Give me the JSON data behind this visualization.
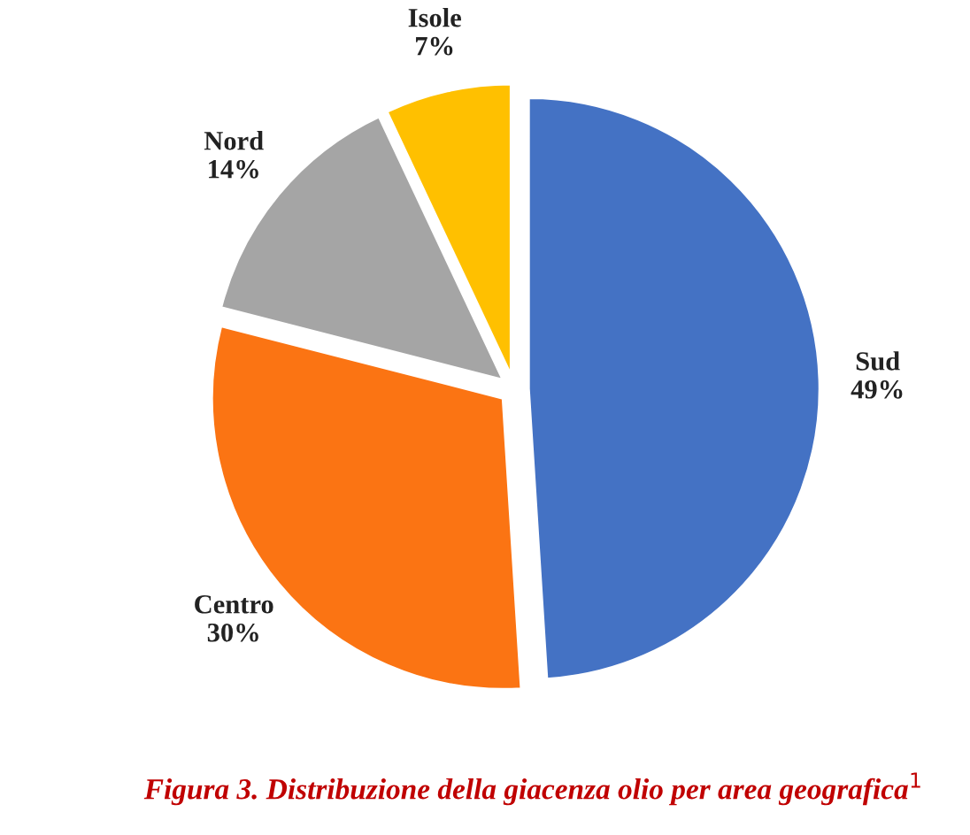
{
  "chart_data": {
    "type": "pie",
    "title": "Figura 3. Distribuzione della giacenza olio per area geografica$^{1}$",
    "categories": [
      "Sud",
      "Centro",
      "Nord",
      "Isole"
    ],
    "values": [
      49,
      30,
      14,
      7
    ],
    "value_labels": [
      "49%",
      "30%",
      "14%",
      "7%"
    ],
    "colors": [
      "#4472c4",
      "#fb7413",
      "#a5a5a5",
      "#ffc000"
    ],
    "legend": false
  }
}
